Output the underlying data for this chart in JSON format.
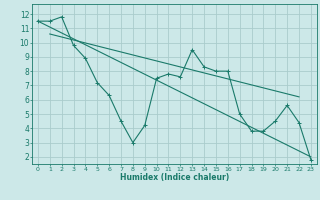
{
  "xlabel": "Humidex (Indice chaleur)",
  "bg_color": "#cce8e8",
  "grid_color": "#aacccc",
  "line_color": "#1a7a6a",
  "xlim": [
    -0.5,
    23.5
  ],
  "ylim": [
    1.5,
    12.7
  ],
  "xticks": [
    0,
    1,
    2,
    3,
    4,
    5,
    6,
    7,
    8,
    9,
    10,
    11,
    12,
    13,
    14,
    15,
    16,
    17,
    18,
    19,
    20,
    21,
    22,
    23
  ],
  "yticks": [
    2,
    3,
    4,
    5,
    6,
    7,
    8,
    9,
    10,
    11,
    12
  ],
  "data_line": {
    "x": [
      0,
      1,
      2,
      3,
      4,
      5,
      6,
      7,
      8,
      9,
      10,
      11,
      12,
      13,
      14,
      15,
      16,
      17,
      18,
      19,
      20,
      21,
      22,
      23
    ],
    "y": [
      11.5,
      11.5,
      11.8,
      9.8,
      8.9,
      7.2,
      6.3,
      4.5,
      3.0,
      4.2,
      7.5,
      7.8,
      7.6,
      9.5,
      8.3,
      8.0,
      8.0,
      5.0,
      3.8,
      3.8,
      4.5,
      5.6,
      4.4,
      1.8
    ]
  },
  "trend_line1": {
    "x": [
      0,
      23
    ],
    "y": [
      11.5,
      2.0
    ]
  },
  "trend_line2": {
    "x": [
      1,
      22
    ],
    "y": [
      10.6,
      6.2
    ]
  }
}
